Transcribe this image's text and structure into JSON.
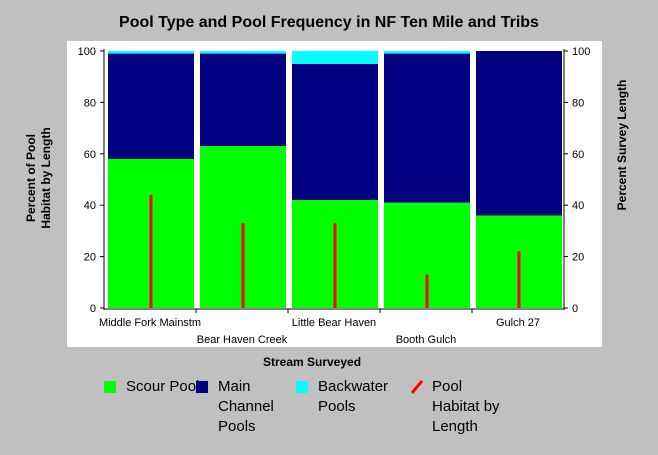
{
  "chart_data": {
    "type": "bar",
    "title": "Pool Type and Pool Frequency in NF Ten Mile and Tribs",
    "xlabel": "Stream Surveyed",
    "ylabel_left": "Percent of Pool Habitat by Length",
    "ylabel_right": "Percent Survey Length",
    "ylim": [
      0,
      100
    ],
    "yticks": [
      "0",
      "20",
      "40",
      "60",
      "80",
      "100"
    ],
    "categories": [
      "Middle Fork Mainstm",
      "Bear Haven Creek",
      "Little Bear Haven",
      "Booth Gulch",
      "Gulch 27"
    ],
    "series": [
      {
        "name": "Scour Pools",
        "color": "#00ff00",
        "values": [
          58,
          63,
          42,
          41,
          36
        ]
      },
      {
        "name": "Main Channel Pools",
        "color": "#000080",
        "values": [
          41,
          36,
          53,
          58,
          64
        ]
      },
      {
        "name": "Backwater Pools",
        "color": "#00ffff",
        "values": [
          1,
          1,
          5,
          1,
          0
        ]
      }
    ],
    "line_series": {
      "name": "Pool Habitat by Length",
      "color": "#ff0000",
      "values": [
        44,
        33,
        33,
        13,
        22
      ]
    },
    "legend_position": "bottom"
  }
}
